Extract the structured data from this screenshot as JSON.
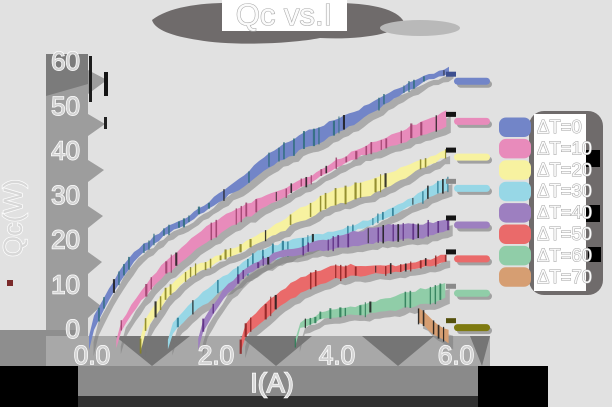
{
  "window": {
    "background_color": "#e1e1e1",
    "shadow_color": "#6f6b6b"
  },
  "chart_data": {
    "type": "line",
    "title": "Qc vs.I",
    "xlabel": "I(A)",
    "ylabel": "Qc(W)",
    "xlim": [
      0,
      6.6
    ],
    "ylim": [
      -3,
      63
    ],
    "grid": false,
    "legend_position": "right",
    "x_ticks": [
      0.0,
      2.0,
      4.0,
      6.0
    ],
    "x_tick_labels": [
      "0.0",
      "2.0",
      "4.0",
      "6.0"
    ],
    "y_ticks": [
      0,
      10,
      20,
      30,
      40,
      50,
      60
    ],
    "y_tick_labels": [
      "0",
      "10",
      "20",
      "30",
      "40",
      "50",
      "60"
    ],
    "series": [
      {
        "label": "ΔT=0",
        "color": "#7285c8",
        "dark": "#2e6e7e",
        "cap": "#3d4f8f",
        "tab_y": 55.5,
        "x": [
          0,
          0.3,
          0.7,
          1.2,
          1.8,
          2.4,
          3.0,
          3.6,
          4.2,
          4.8,
          5.4,
          5.9
        ],
        "y": [
          0,
          8,
          16,
          22,
          27,
          32,
          38,
          43,
          47,
          51,
          55,
          58
        ]
      },
      {
        "label": "ΔT=10",
        "color": "#e88bbb",
        "dark": "#9a3d68",
        "cap": "#141414",
        "tab_y": 46.5,
        "x": [
          0.45,
          0.8,
          1.2,
          1.8,
          2.4,
          3.0,
          3.6,
          4.2,
          4.8,
          5.4,
          5.9
        ],
        "y": [
          0,
          8,
          14,
          20,
          25,
          30,
          34,
          38,
          41,
          45,
          48
        ]
      },
      {
        "label": "ΔT=20",
        "color": "#f7f2a0",
        "dark": "#85801e",
        "cap": "#141414",
        "tab_y": 38.5,
        "x": [
          0.85,
          1.2,
          1.6,
          2.2,
          2.8,
          3.4,
          4.0,
          4.6,
          5.2,
          5.9
        ],
        "y": [
          0,
          7,
          12,
          17,
          21,
          25,
          29,
          32,
          36,
          39.5
        ]
      },
      {
        "label": "ΔT=30",
        "color": "#97d7e6",
        "dark": "#2a7a92",
        "cap": "#8a8a8a",
        "tab_y": 31.5,
        "x": [
          1.3,
          1.7,
          2.1,
          2.7,
          3.3,
          3.9,
          4.5,
          5.1,
          5.9
        ],
        "y": [
          0,
          6,
          10,
          15,
          18,
          21,
          24,
          27,
          32.5
        ]
      },
      {
        "label": "ΔT=40",
        "color": "#9d7fc0",
        "dark": "#5a2a80",
        "cap": "#141414",
        "tab_y": 23.3,
        "x": [
          1.8,
          2.2,
          2.6,
          3.1,
          3.7,
          4.3,
          4.9,
          5.5,
          5.9
        ],
        "y": [
          0,
          8,
          13,
          17,
          19,
          20,
          21,
          22.2,
          24
        ]
      },
      {
        "label": "ΔT=50",
        "color": "#ea6a6a",
        "dark": "#8a2020",
        "cap": "#141414",
        "tab_y": 15.7,
        "x": [
          2.5,
          2.9,
          3.3,
          3.9,
          4.5,
          5.1,
          5.9
        ],
        "y": [
          0,
          5,
          9,
          12,
          13,
          14,
          16.3
        ]
      },
      {
        "label": "ΔT=60",
        "color": "#90cda8",
        "dark": "#2a7a55",
        "cap": "#8a8a8a",
        "tab_y": 8,
        "x": [
          3.4,
          3.8,
          4.3,
          4.9,
          5.5,
          5.9
        ],
        "y": [
          0,
          3,
          4.5,
          6,
          7,
          8.3
        ]
      },
      {
        "label": "ΔT=70",
        "color": "#d69e72",
        "dark": "#141414",
        "cap": "#55510c",
        "tab_color": "#7e7a10",
        "tab_y": 0.3,
        "w": 17,
        "x": [
          5.38,
          5.55,
          5.75,
          5.95
        ],
        "y": [
          2.8,
          1.2,
          -0.8,
          -2.2
        ]
      }
    ]
  }
}
